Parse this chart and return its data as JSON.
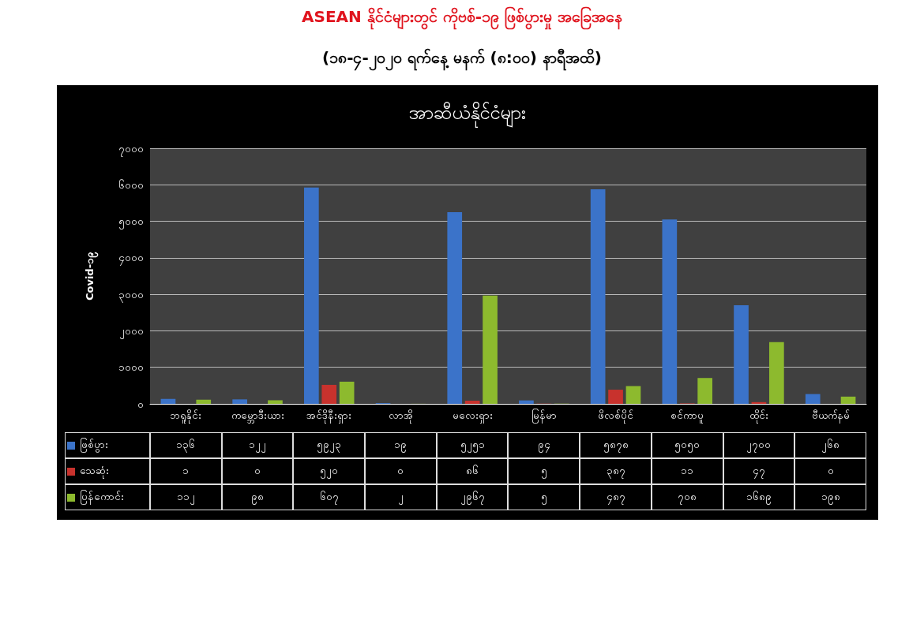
{
  "chart_data": {
    "type": "bar",
    "title": "ASEAN နိုင်ငံများတွင် ကိုဗစ်-၁၉ ဖြစ်ပွားမှု အခြေအနေ",
    "subtitle": "(၁၈-၄-၂၀၂၀ ရက်နေ့ မနက် (၈:၀၀) နာရီအထိ)",
    "annotations": [
      "အာဆီယံနိုင်ငံများ"
    ],
    "ylabel": "Covid-၁၉",
    "categories": [
      "ဘရူနိုင်း",
      "ကမ္ဘောဒီးယား",
      "အင်ဒိုနီးရှား",
      "လာအို",
      "မလေးရှား",
      "မြန်မာ",
      "ဖိလစ်ပိုင်",
      "စင်ကာပူ",
      "ထိုင်း",
      "ဗီယက်နမ်"
    ],
    "series": [
      {
        "name": "ဖြစ်ပွား",
        "color": "#3b73c9",
        "values": [
          136,
          122,
          5923,
          19,
          5251,
          94,
          5878,
          5050,
          2700,
          268
        ],
        "value_labels": [
          "၁၃၆",
          "၁၂၂",
          "၅၉၂၃",
          "၁၉",
          "၅၂၅၁",
          "၉၄",
          "၅၈၇၈",
          "၅၀၅၀",
          "၂၇၀၀",
          "၂၆၈"
        ]
      },
      {
        "name": "သေဆုံး",
        "color": "#c8322d",
        "values": [
          1,
          0,
          520,
          0,
          86,
          5,
          387,
          11,
          47,
          0
        ],
        "value_labels": [
          "၁",
          "၀",
          "၅၂၀",
          "၀",
          "၈၆",
          "၅",
          "၃၈၇",
          "၁၁",
          "၄၇",
          "၀"
        ]
      },
      {
        "name": "ပြန်ကောင်း",
        "color": "#8dba2e",
        "values": [
          112,
          98,
          607,
          2,
          2967,
          5,
          487,
          708,
          1689,
          198
        ],
        "value_labels": [
          "၁၁၂",
          "၉၈",
          "၆၀၇",
          "၂",
          "၂၉၆၇",
          "၅",
          "၄၈၇",
          "၇၀၈",
          "၁၆၈၉",
          "၁၉၈"
        ]
      }
    ],
    "ylim": [
      0,
      7000
    ],
    "yticks": [
      {
        "value": 0,
        "label": "၀"
      },
      {
        "value": 1000,
        "label": "၁၀၀၀"
      },
      {
        "value": 2000,
        "label": "၂၀၀၀"
      },
      {
        "value": 3000,
        "label": "၃၀၀၀"
      },
      {
        "value": 4000,
        "label": "၄၀၀၀"
      },
      {
        "value": 5000,
        "label": "၅၀၀၀"
      },
      {
        "value": 6000,
        "label": "၆၀၀၀"
      },
      {
        "value": 7000,
        "label": "၇၀၀၀"
      }
    ],
    "grid": "y",
    "legend": "bottom"
  }
}
